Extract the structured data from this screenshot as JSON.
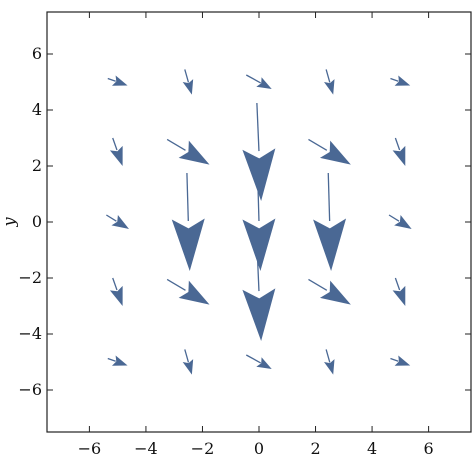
{
  "chart_data": {
    "type": "vector-field",
    "title": "",
    "xlabel": "",
    "ylabel": "y",
    "xlim": [
      -7.5,
      7.5
    ],
    "ylim": [
      -7.5,
      7.5
    ],
    "grid": false,
    "x_ticks": [
      "−6",
      "−4",
      "−2",
      "0",
      "2",
      "4",
      "6"
    ],
    "x_tick_values": [
      -6,
      -4,
      -2,
      0,
      2,
      4,
      6
    ],
    "y_ticks": [
      "−6",
      "−4",
      "−2",
      "0",
      "2",
      "4",
      "6"
    ],
    "y_tick_values": [
      -6,
      -4,
      -2,
      0,
      2,
      4,
      6
    ],
    "arrow_color": "#4a6894",
    "vectors": [
      {
        "x": -5,
        "y": 5,
        "u": 0.7,
        "v": -0.25,
        "m": 0.15
      },
      {
        "x": -2.5,
        "y": 5,
        "u": 0.25,
        "v": -0.9,
        "m": 0.15
      },
      {
        "x": 0,
        "y": 5,
        "u": 0.9,
        "v": -0.5,
        "m": 0.15
      },
      {
        "x": 2.5,
        "y": 5,
        "u": 0.25,
        "v": -0.9,
        "m": 0.15
      },
      {
        "x": 5,
        "y": 5,
        "u": 0.7,
        "v": -0.25,
        "m": 0.15
      },
      {
        "x": -5,
        "y": 2.5,
        "u": 0.35,
        "v": -1.0,
        "m": 0.25
      },
      {
        "x": -2.5,
        "y": 2.5,
        "u": 1.5,
        "v": -0.9,
        "m": 0.5
      },
      {
        "x": 0,
        "y": 2.5,
        "u": 0.15,
        "v": -3.5,
        "m": 1.0
      },
      {
        "x": 2.5,
        "y": 2.5,
        "u": 1.5,
        "v": -0.9,
        "m": 0.5
      },
      {
        "x": 5,
        "y": 2.5,
        "u": 0.35,
        "v": -1.0,
        "m": 0.25
      },
      {
        "x": -5,
        "y": 0,
        "u": 0.8,
        "v": -0.5,
        "m": 0.2
      },
      {
        "x": -2.5,
        "y": 0,
        "u": 0.1,
        "v": -3.5,
        "m": 1.0
      },
      {
        "x": 0,
        "y": 0,
        "u": 0.1,
        "v": -3.5,
        "m": 1.0
      },
      {
        "x": 2.5,
        "y": 0,
        "u": 0.1,
        "v": -3.5,
        "m": 1.0
      },
      {
        "x": 5,
        "y": 0,
        "u": 0.8,
        "v": -0.5,
        "m": 0.2
      },
      {
        "x": -5,
        "y": -2.5,
        "u": 0.35,
        "v": -1.0,
        "m": 0.25
      },
      {
        "x": -2.5,
        "y": -2.5,
        "u": 1.5,
        "v": -0.9,
        "m": 0.5
      },
      {
        "x": 0,
        "y": -2.5,
        "u": 0.15,
        "v": -3.5,
        "m": 1.0
      },
      {
        "x": 2.5,
        "y": -2.5,
        "u": 1.5,
        "v": -0.9,
        "m": 0.5
      },
      {
        "x": 5,
        "y": -2.5,
        "u": 0.35,
        "v": -1.0,
        "m": 0.25
      },
      {
        "x": -5,
        "y": -5,
        "u": 0.7,
        "v": -0.25,
        "m": 0.15
      },
      {
        "x": -2.5,
        "y": -5,
        "u": 0.25,
        "v": -0.9,
        "m": 0.15
      },
      {
        "x": 0,
        "y": -5,
        "u": 0.9,
        "v": -0.5,
        "m": 0.15
      },
      {
        "x": 2.5,
        "y": -5,
        "u": 0.25,
        "v": -0.9,
        "m": 0.15
      },
      {
        "x": 5,
        "y": -5,
        "u": 0.7,
        "v": -0.25,
        "m": 0.15
      }
    ]
  }
}
